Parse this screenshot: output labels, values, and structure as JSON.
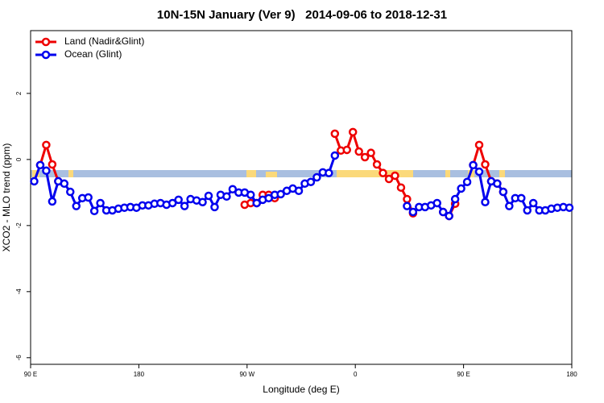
{
  "chart_data": {
    "type": "line",
    "title": "10N-15N January (Ver 9)   2014-09-06 to 2018-12-31",
    "x_label": "Longitude (deg E)",
    "y_label": "XCO2 - MLO trend (ppm)",
    "x": [
      93,
      98,
      103,
      108,
      113,
      118,
      123,
      128,
      133,
      138,
      143,
      148,
      153,
      158,
      163,
      168,
      173,
      178,
      183,
      188,
      193,
      198,
      203,
      208,
      213,
      218,
      223,
      228,
      233,
      238,
      243,
      248,
      253,
      258,
      263,
      268,
      273,
      278,
      283,
      288,
      293,
      298,
      303,
      308,
      313,
      318,
      323,
      328,
      333,
      338,
      343,
      348,
      353,
      358,
      363,
      368,
      373,
      378,
      383,
      388,
      393,
      398,
      403,
      408,
      413,
      418,
      423,
      428,
      433,
      438,
      443,
      448,
      453,
      458,
      463,
      468,
      473,
      478,
      483,
      488,
      493,
      498,
      503,
      508,
      513,
      518,
      523,
      528,
      533,
      538
    ],
    "series": [
      {
        "name": "Land (Nadir&Glint)",
        "color": "#ee0000",
        "values": [
          null,
          -0.17,
          0.44,
          -0.15,
          -0.66,
          null,
          null,
          null,
          null,
          null,
          null,
          null,
          null,
          null,
          null,
          null,
          null,
          null,
          null,
          null,
          null,
          null,
          null,
          null,
          null,
          null,
          null,
          null,
          null,
          null,
          null,
          null,
          null,
          null,
          null,
          -1.37,
          -1.32,
          -1.32,
          -1.07,
          -1.07,
          -1.17,
          null,
          null,
          null,
          null,
          null,
          null,
          null,
          null,
          null,
          0.78,
          0.27,
          0.29,
          0.83,
          0.24,
          0.07,
          0.2,
          -0.15,
          -0.41,
          -0.59,
          -0.49,
          -0.85,
          -1.2,
          -1.63,
          null,
          null,
          null,
          null,
          -1.59,
          -1.71,
          -1.34,
          null,
          null,
          -0.17,
          0.44,
          -0.15,
          -0.66,
          -0.73,
          -0.98,
          null,
          null,
          null,
          null,
          null,
          null,
          null,
          null,
          null,
          null,
          null
        ]
      },
      {
        "name": "Ocean (Glint)",
        "color": "#0000ee",
        "values": [
          -0.66,
          -0.17,
          -0.34,
          -1.27,
          -0.66,
          -0.73,
          -0.98,
          -1.41,
          -1.17,
          -1.15,
          -1.56,
          -1.32,
          -1.54,
          -1.54,
          -1.49,
          -1.46,
          -1.44,
          -1.46,
          -1.39,
          -1.39,
          -1.34,
          -1.32,
          -1.37,
          -1.32,
          -1.22,
          -1.41,
          -1.2,
          -1.24,
          -1.29,
          -1.1,
          -1.44,
          -1.07,
          -1.12,
          -0.9,
          -1.0,
          -1.0,
          -1.07,
          -1.32,
          -1.22,
          -1.17,
          -1.07,
          -1.05,
          -0.95,
          -0.88,
          -0.95,
          -0.73,
          -0.68,
          -0.54,
          -0.39,
          -0.41,
          0.12,
          null,
          null,
          null,
          null,
          null,
          null,
          null,
          null,
          null,
          null,
          null,
          -1.41,
          -1.59,
          -1.44,
          -1.44,
          -1.39,
          -1.32,
          -1.59,
          -1.71,
          -1.2,
          -0.88,
          -0.68,
          -0.17,
          -0.37,
          -1.29,
          -0.66,
          -0.73,
          -0.98,
          -1.41,
          -1.17,
          -1.17,
          -1.54,
          -1.32,
          -1.54,
          -1.54,
          -1.49,
          -1.46,
          -1.44,
          -1.46
        ]
      }
    ],
    "xlim": [
      90,
      540
    ],
    "xticks": [
      {
        "value": 90,
        "label": "90 E"
      },
      180,
      {
        "value": 270,
        "label": "90 W"
      },
      {
        "value": 360,
        "label": "0"
      },
      {
        "value": 450,
        "label": "90 E"
      },
      {
        "value": 540,
        "label": "180"
      }
    ],
    "ylim": [
      -6.2,
      3.9
    ],
    "yticks": [
      2,
      0,
      -2,
      -4,
      -6
    ],
    "legend": "top-left"
  }
}
